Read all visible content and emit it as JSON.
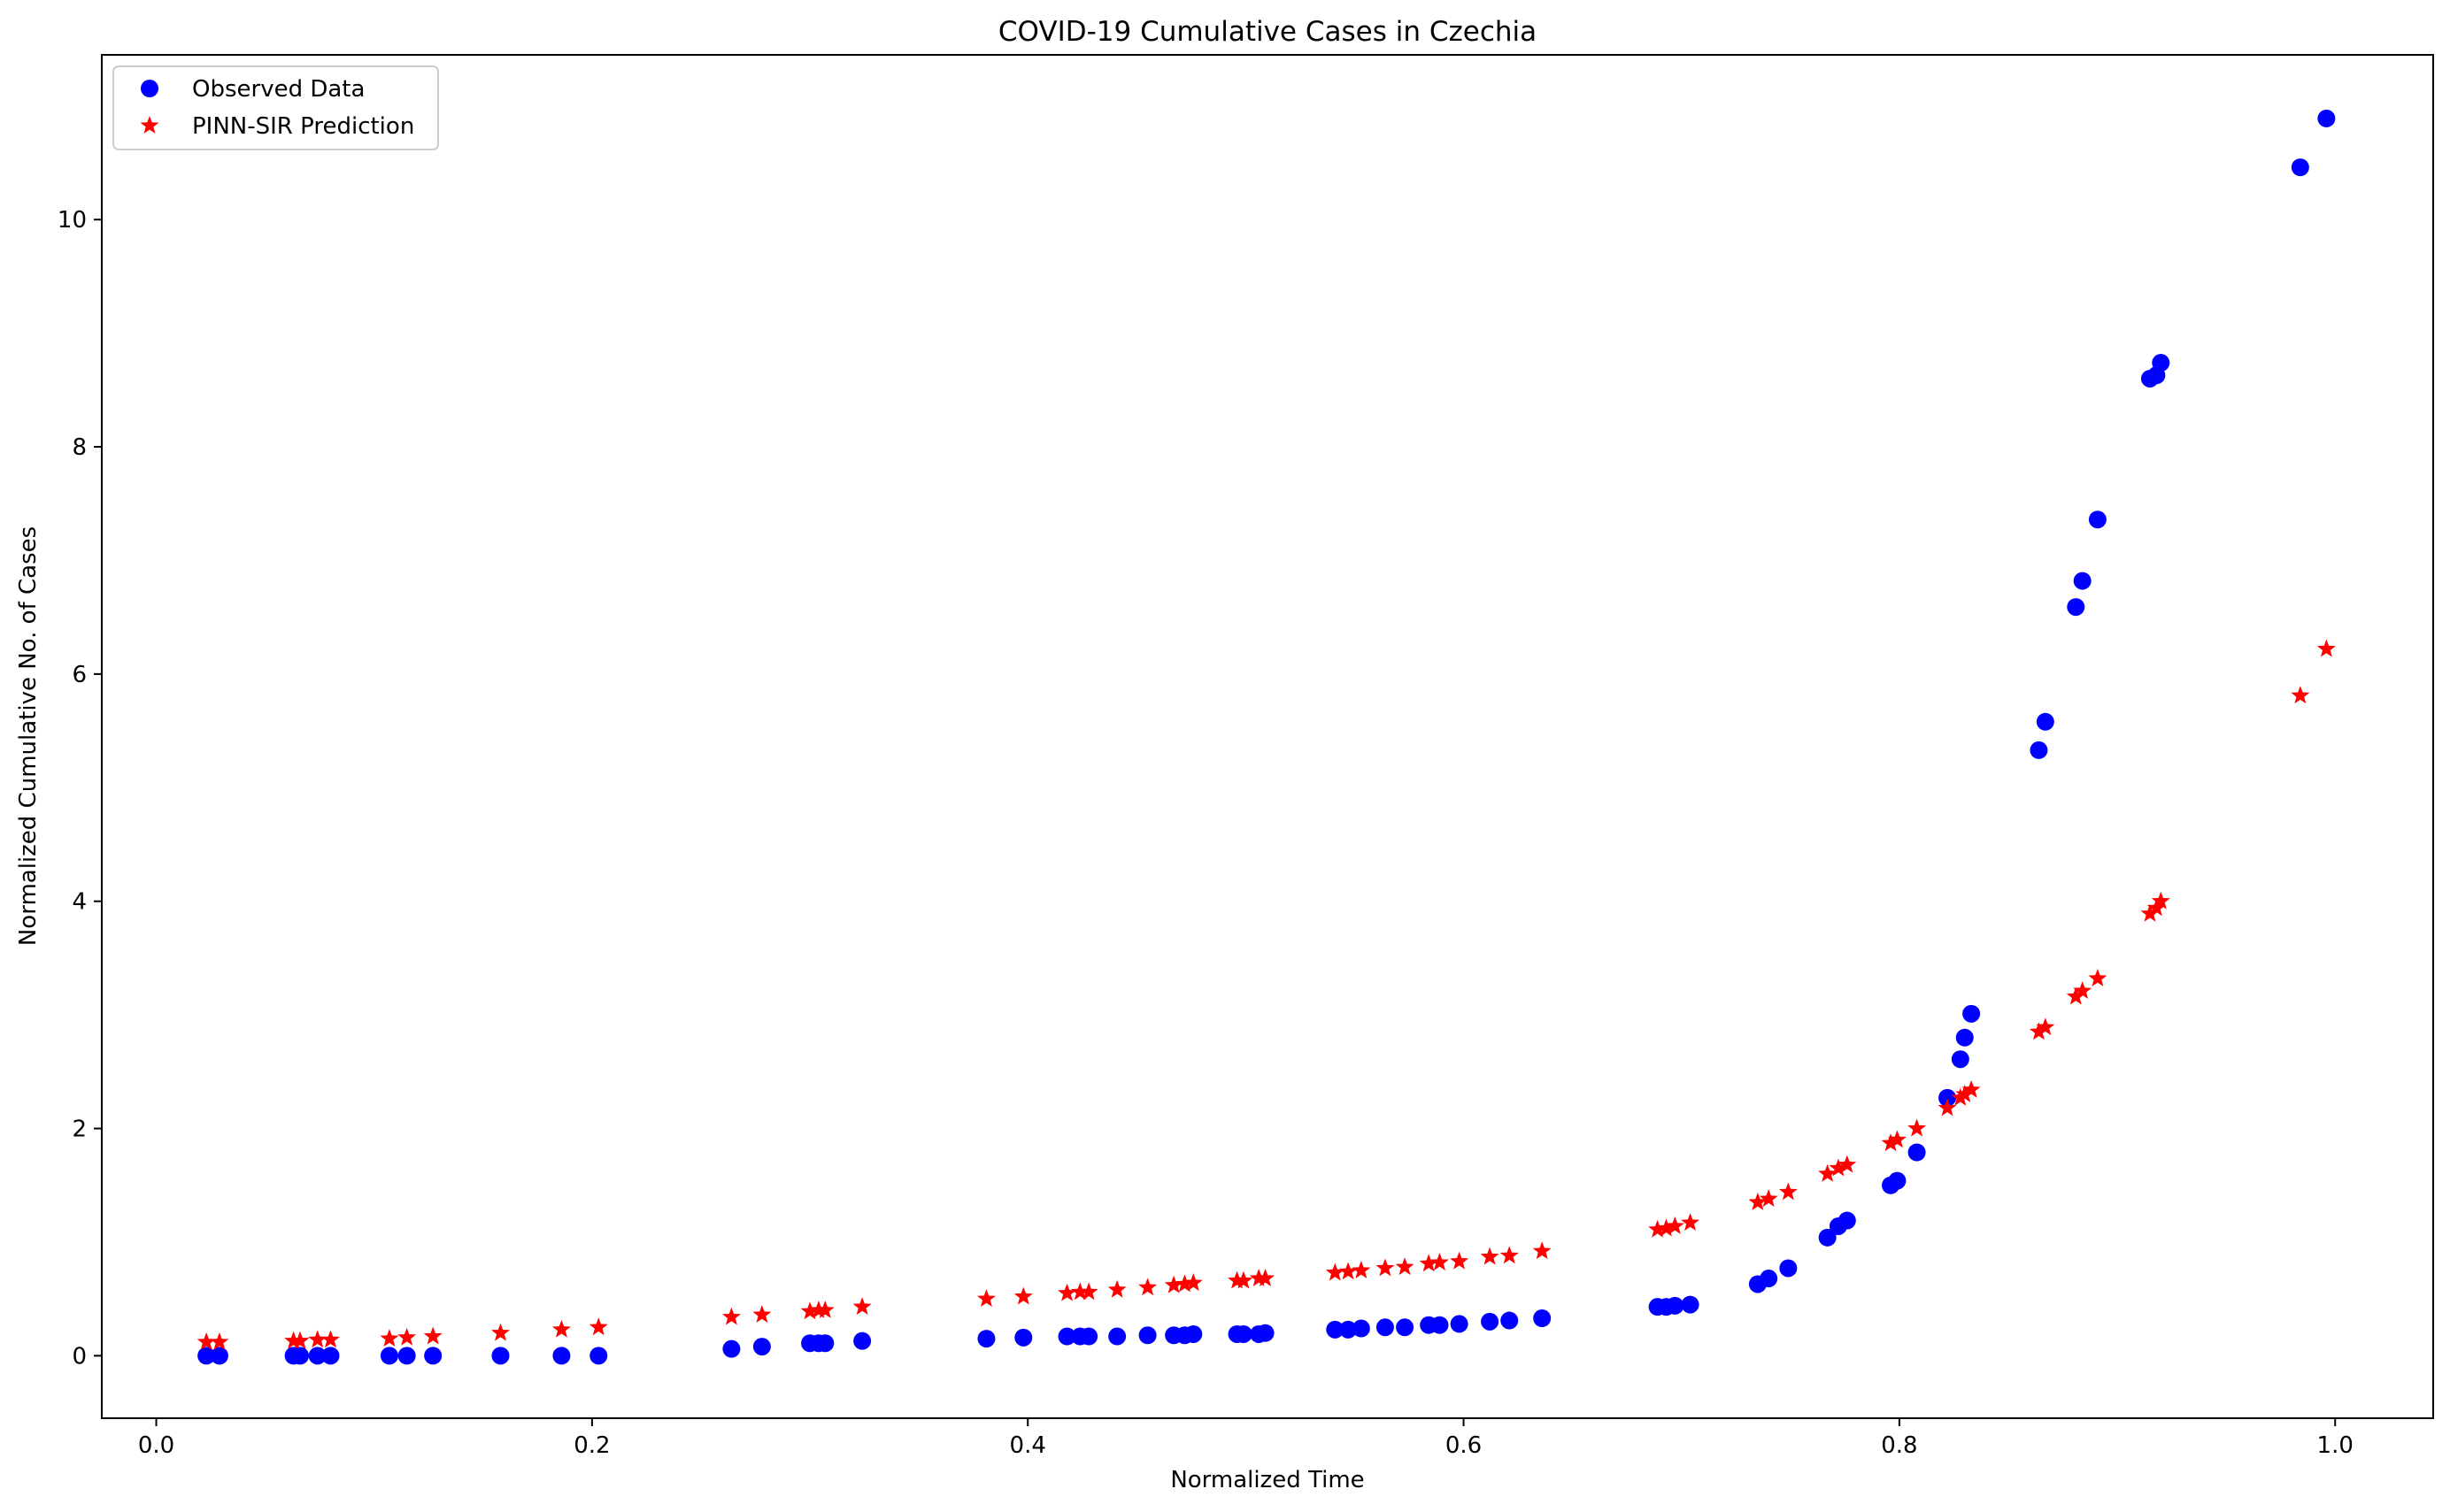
{
  "chart_data": {
    "type": "scatter",
    "title": "COVID-19 Cumulative Cases in Czechia",
    "xlabel": "Normalized Time",
    "ylabel": "Normalized Cumulative No. of Cases",
    "xlim": [
      -0.025,
      1.045
    ],
    "ylim": [
      -0.55,
      11.45
    ],
    "xticks": [
      0.0,
      0.2,
      0.4,
      0.6,
      0.8,
      1.0
    ],
    "xtick_labels": [
      "0.0",
      "0.2",
      "0.4",
      "0.6",
      "0.8",
      "1.0"
    ],
    "yticks": [
      0,
      2,
      4,
      6,
      8,
      10
    ],
    "ytick_labels": [
      "0",
      "2",
      "4",
      "6",
      "8",
      "10"
    ],
    "grid": false,
    "legend_position": "upper-left",
    "series": [
      {
        "name": "Observed Data",
        "marker": "circle",
        "color": "#0000ff",
        "x": [
          0.023,
          0.029,
          0.063,
          0.066,
          0.074,
          0.08,
          0.107,
          0.115,
          0.127,
          0.158,
          0.186,
          0.203,
          0.264,
          0.278,
          0.3,
          0.304,
          0.307,
          0.324,
          0.381,
          0.398,
          0.418,
          0.424,
          0.428,
          0.441,
          0.455,
          0.467,
          0.472,
          0.476,
          0.496,
          0.499,
          0.506,
          0.509,
          0.541,
          0.547,
          0.553,
          0.564,
          0.573,
          0.584,
          0.589,
          0.598,
          0.612,
          0.621,
          0.636,
          0.689,
          0.693,
          0.697,
          0.704,
          0.735,
          0.74,
          0.749,
          0.767,
          0.772,
          0.776,
          0.796,
          0.799,
          0.808,
          0.822,
          0.828,
          0.83,
          0.833,
          0.864,
          0.867,
          0.881,
          0.884,
          0.891,
          0.915,
          0.918,
          0.92,
          0.984,
          0.996
        ],
        "y": [
          0.0,
          0.0,
          0.0,
          0.0,
          0.0,
          0.0,
          0.0,
          0.0,
          0.0,
          0.0,
          0.0,
          0.0,
          0.06,
          0.08,
          0.11,
          0.11,
          0.11,
          0.13,
          0.15,
          0.16,
          0.17,
          0.17,
          0.17,
          0.17,
          0.18,
          0.18,
          0.18,
          0.19,
          0.19,
          0.19,
          0.19,
          0.2,
          0.23,
          0.23,
          0.24,
          0.25,
          0.25,
          0.27,
          0.27,
          0.28,
          0.3,
          0.31,
          0.33,
          0.43,
          0.43,
          0.44,
          0.45,
          0.63,
          0.68,
          0.77,
          1.04,
          1.14,
          1.19,
          1.5,
          1.54,
          1.79,
          2.27,
          2.61,
          2.8,
          3.01,
          5.33,
          5.58,
          6.59,
          6.82,
          7.36,
          8.6,
          8.63,
          8.74,
          10.46,
          10.89
        ]
      },
      {
        "name": "PINN-SIR Prediction",
        "marker": "star",
        "color": "#ff0000",
        "x": [
          0.023,
          0.029,
          0.063,
          0.066,
          0.074,
          0.08,
          0.107,
          0.115,
          0.127,
          0.158,
          0.186,
          0.203,
          0.264,
          0.278,
          0.3,
          0.304,
          0.307,
          0.324,
          0.381,
          0.398,
          0.418,
          0.424,
          0.428,
          0.441,
          0.455,
          0.467,
          0.472,
          0.476,
          0.496,
          0.499,
          0.506,
          0.509,
          0.541,
          0.547,
          0.553,
          0.564,
          0.573,
          0.584,
          0.589,
          0.598,
          0.612,
          0.621,
          0.636,
          0.689,
          0.693,
          0.697,
          0.704,
          0.735,
          0.74,
          0.749,
          0.767,
          0.772,
          0.776,
          0.796,
          0.799,
          0.808,
          0.822,
          0.828,
          0.83,
          0.833,
          0.864,
          0.867,
          0.881,
          0.884,
          0.891,
          0.915,
          0.918,
          0.92,
          0.984,
          0.996
        ],
        "y": [
          0.12,
          0.12,
          0.13,
          0.13,
          0.14,
          0.14,
          0.15,
          0.16,
          0.17,
          0.2,
          0.23,
          0.25,
          0.34,
          0.36,
          0.39,
          0.4,
          0.4,
          0.43,
          0.5,
          0.52,
          0.55,
          0.56,
          0.56,
          0.58,
          0.6,
          0.62,
          0.63,
          0.64,
          0.66,
          0.66,
          0.68,
          0.68,
          0.73,
          0.74,
          0.75,
          0.77,
          0.78,
          0.81,
          0.82,
          0.83,
          0.87,
          0.88,
          0.92,
          1.11,
          1.12,
          1.14,
          1.17,
          1.35,
          1.38,
          1.44,
          1.6,
          1.65,
          1.68,
          1.87,
          1.9,
          2.0,
          2.18,
          2.27,
          2.3,
          2.34,
          2.85,
          2.89,
          3.16,
          3.21,
          3.32,
          3.89,
          3.94,
          4.0,
          5.81,
          6.22
        ]
      }
    ]
  }
}
